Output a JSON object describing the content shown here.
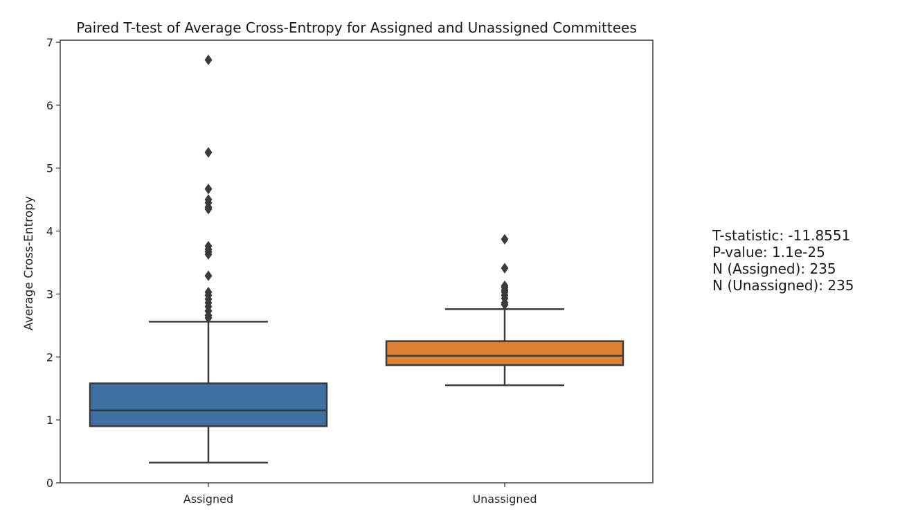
{
  "chart_data": {
    "type": "box",
    "title": "Paired T-test of Average Cross-Entropy for Assigned and Unassigned Committees",
    "xlabel": "",
    "ylabel": "Average Cross-Entropy",
    "ylim": [
      0,
      7
    ],
    "yticks": [
      "0",
      "1",
      "2",
      "3",
      "4",
      "5",
      "6",
      "7"
    ],
    "grid": false,
    "categories": [
      "Assigned",
      "Unassigned"
    ],
    "boxes": [
      {
        "name": "Assigned",
        "color": "#3f72a3",
        "whisker_low": 0.32,
        "q1": 0.9,
        "median": 1.15,
        "q3": 1.58,
        "whisker_high": 2.56,
        "outliers": [
          6.72,
          5.25,
          4.67,
          4.5,
          4.45,
          4.38,
          4.35,
          3.76,
          3.71,
          3.67,
          3.63,
          3.29,
          3.03,
          2.98,
          2.92,
          2.86,
          2.8,
          2.73,
          2.66,
          2.62
        ]
      },
      {
        "name": "Unassigned",
        "color": "#e08133",
        "whisker_low": 1.55,
        "q1": 1.87,
        "median": 2.02,
        "q3": 2.25,
        "whisker_high": 2.76,
        "outliers": [
          3.87,
          3.41,
          3.13,
          3.1,
          3.06,
          3.03,
          2.98,
          2.93,
          2.86,
          2.83
        ]
      }
    ]
  },
  "stats": {
    "t_statistic": "T-statistic: -11.8551",
    "p_value": "P-value: 1.1e-25",
    "n_assigned": "N (Assigned): 235",
    "n_unassigned": "N (Unassigned): 235"
  },
  "colors": {
    "axis": "#262626",
    "box_line": "#3b3b3b",
    "background": "#ffffff"
  }
}
